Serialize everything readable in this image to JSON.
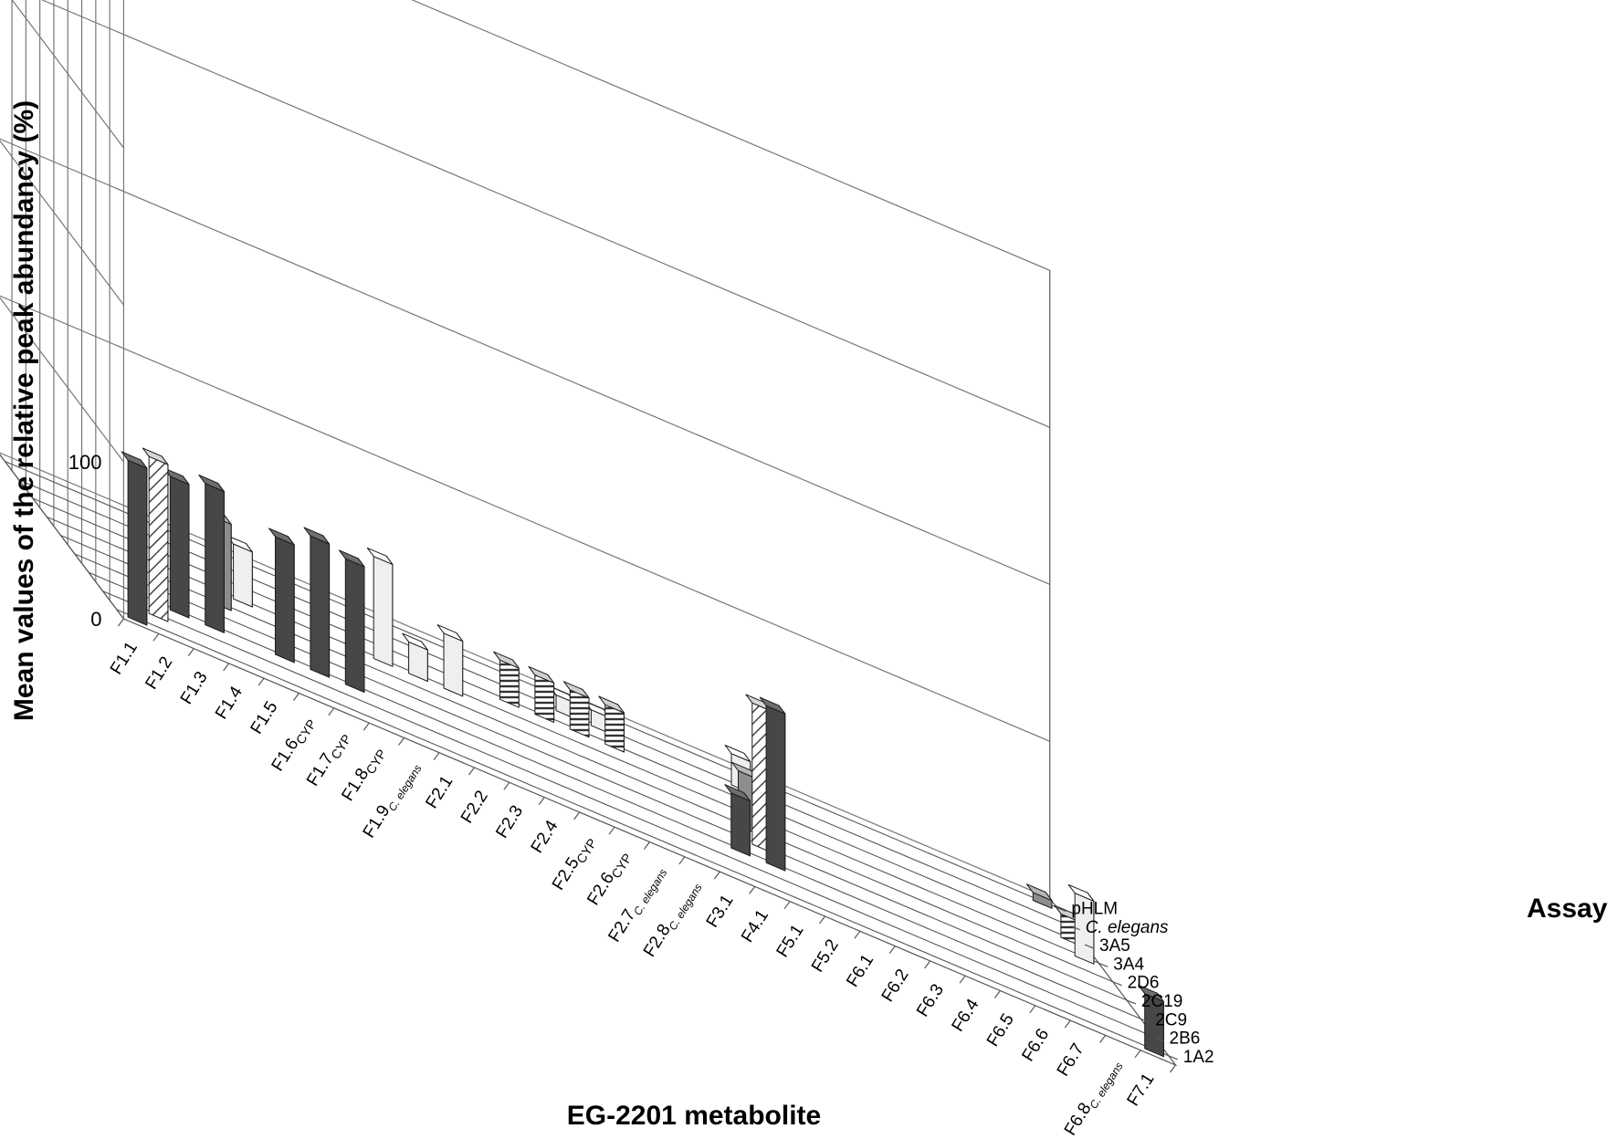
{
  "chart_data": {
    "type": "bar",
    "subtype": "3d-grouped-bar",
    "ylabel": "Mean values of the relative peak abundancy (%)",
    "xlabel": "EG-2201 metabolite",
    "zlabel": "Assay",
    "yticks": [
      "0",
      "100"
    ],
    "ylim": [
      0,
      400
    ],
    "categories": [
      {
        "base": "F1.1",
        "sub": ""
      },
      {
        "base": "F1.2",
        "sub": ""
      },
      {
        "base": "F1.3",
        "sub": ""
      },
      {
        "base": "F1.4",
        "sub": ""
      },
      {
        "base": "F1.5",
        "sub": ""
      },
      {
        "base": "F1.6",
        "sub": "CYP"
      },
      {
        "base": "F1.7",
        "sub": "CYP"
      },
      {
        "base": "F1.8",
        "sub": "CYP"
      },
      {
        "base": "F1.9",
        "sub": "C. elegans"
      },
      {
        "base": "F2.1",
        "sub": ""
      },
      {
        "base": "F2.2",
        "sub": ""
      },
      {
        "base": "F2.3",
        "sub": ""
      },
      {
        "base": "F2.4",
        "sub": ""
      },
      {
        "base": "F2.5",
        "sub": "CYP"
      },
      {
        "base": "F2.6",
        "sub": "CYP"
      },
      {
        "base": "F2.7",
        "sub": "C. elegans"
      },
      {
        "base": "F2.8",
        "sub": "C. elegans"
      },
      {
        "base": "F3.1",
        "sub": ""
      },
      {
        "base": "F4.1",
        "sub": ""
      },
      {
        "base": "F5.1",
        "sub": ""
      },
      {
        "base": "F5.2",
        "sub": ""
      },
      {
        "base": "F6.1",
        "sub": ""
      },
      {
        "base": "F6.2",
        "sub": ""
      },
      {
        "base": "F6.3",
        "sub": ""
      },
      {
        "base": "F6.4",
        "sub": ""
      },
      {
        "base": "F6.5",
        "sub": ""
      },
      {
        "base": "F6.6",
        "sub": ""
      },
      {
        "base": "F6.7",
        "sub": ""
      },
      {
        "base": "F6.8",
        "sub": "C. elegans"
      },
      {
        "base": "F7.1",
        "sub": ""
      }
    ],
    "series": [
      {
        "name": "1A2",
        "style": "dark",
        "values": [
          100,
          0,
          0,
          0,
          0,
          0,
          0,
          0,
          0,
          0,
          0,
          0,
          0,
          0,
          0,
          0,
          0,
          0,
          0,
          0,
          0,
          0,
          0,
          0,
          0,
          0,
          0,
          0,
          0,
          35
        ]
      },
      {
        "name": "2B6",
        "style": "hatch",
        "values": [
          0,
          100,
          0,
          0,
          0,
          0,
          0,
          0,
          0,
          0,
          0,
          0,
          0,
          0,
          0,
          0,
          0,
          0,
          0,
          0,
          0,
          0,
          0,
          0,
          0,
          0,
          0,
          0,
          0,
          0
        ]
      },
      {
        "name": "2C9",
        "style": "dark",
        "values": [
          0,
          0,
          85,
          90,
          0,
          75,
          85,
          80,
          0,
          0,
          0,
          0,
          0,
          0,
          0,
          0,
          0,
          0,
          35,
          100,
          0,
          0,
          0,
          0,
          0,
          0,
          0,
          0,
          0,
          0
        ]
      },
      {
        "name": "2C19",
        "style": "hatch",
        "values": [
          0,
          0,
          0,
          0,
          0,
          0,
          0,
          0,
          0,
          0,
          0,
          0,
          0,
          0,
          0,
          0,
          0,
          0,
          0,
          90,
          0,
          0,
          0,
          0,
          0,
          0,
          0,
          0,
          0,
          0
        ]
      },
      {
        "name": "2D6",
        "style": "medium",
        "values": [
          0,
          0,
          0,
          0,
          55,
          0,
          0,
          0,
          0,
          0,
          0,
          0,
          0,
          0,
          0,
          0,
          0,
          0,
          0,
          35,
          0,
          0,
          0,
          0,
          0,
          0,
          0,
          0,
          0,
          0
        ]
      },
      {
        "name": "3A4",
        "style": "light",
        "values": [
          0,
          0,
          0,
          0,
          0,
          35,
          0,
          0,
          0,
          65,
          20,
          35,
          0,
          0,
          0,
          0,
          0,
          0,
          0,
          0,
          60,
          0,
          0,
          0,
          0,
          0,
          0,
          0,
          0,
          40
        ]
      },
      {
        "name": "3A5",
        "style": "stripes",
        "values": [
          0,
          0,
          0,
          0,
          0,
          0,
          0,
          0,
          0,
          0,
          0,
          0,
          0,
          25,
          25,
          25,
          25,
          0,
          0,
          0,
          0,
          0,
          0,
          0,
          0,
          0,
          0,
          0,
          0,
          15
        ]
      },
      {
        "name": "C. elegans",
        "style": "light",
        "values": [
          0,
          0,
          0,
          0,
          0,
          0,
          0,
          0,
          0,
          0,
          0,
          0,
          0,
          0,
          0,
          10,
          10,
          0,
          0,
          0,
          20,
          0,
          0,
          0,
          0,
          0,
          0,
          0,
          0,
          0
        ]
      },
      {
        "name": "pHLM",
        "style": "medium",
        "values": [
          0,
          0,
          0,
          0,
          0,
          0,
          0,
          0,
          0,
          0,
          0,
          0,
          0,
          0,
          0,
          0,
          0,
          0,
          0,
          0,
          0,
          0,
          0,
          0,
          0,
          0,
          0,
          0,
          0,
          5
        ]
      }
    ],
    "grid": true,
    "legend": "none"
  }
}
